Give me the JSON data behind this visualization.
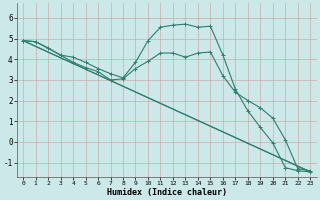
{
  "xlabel": "Humidex (Indice chaleur)",
  "background_color": "#cce8e8",
  "grid_color": "#b0c8c8",
  "line_color": "#2e7d6e",
  "xlim": [
    -0.5,
    23.5
  ],
  "ylim": [
    -1.7,
    6.7
  ],
  "xticks": [
    0,
    1,
    2,
    3,
    4,
    5,
    6,
    7,
    8,
    9,
    10,
    11,
    12,
    13,
    14,
    15,
    16,
    17,
    18,
    19,
    20,
    21,
    22,
    23
  ],
  "yticks": [
    -1,
    0,
    1,
    2,
    3,
    4,
    5,
    6
  ],
  "series": [
    {
      "x": [
        0,
        1,
        2,
        3,
        4,
        5,
        6,
        7,
        8,
        9,
        10,
        11,
        12,
        13,
        14,
        15,
        16,
        17,
        18,
        19,
        20,
        21,
        22,
        23
      ],
      "y": [
        4.9,
        4.85,
        4.55,
        4.2,
        4.1,
        3.85,
        3.55,
        3.3,
        3.1,
        3.85,
        4.9,
        5.55,
        5.65,
        5.7,
        5.55,
        5.6,
        4.2,
        2.55,
        1.5,
        0.7,
        -0.05,
        -1.25,
        -1.4,
        -1.45
      ],
      "marker": true
    },
    {
      "x": [
        0,
        1,
        3,
        4,
        5,
        6,
        7,
        8,
        9,
        10,
        11,
        12,
        13,
        14,
        15,
        16,
        17,
        18,
        19,
        20,
        21,
        22,
        23
      ],
      "y": [
        4.9,
        4.85,
        4.2,
        3.85,
        3.6,
        3.4,
        3.0,
        3.05,
        3.55,
        3.9,
        4.3,
        4.3,
        4.1,
        4.3,
        4.35,
        3.2,
        2.4,
        2.0,
        1.65,
        1.15,
        0.1,
        -1.3,
        -1.4
      ],
      "marker": true
    },
    {
      "x": [
        0,
        23
      ],
      "y": [
        4.9,
        -1.45
      ],
      "marker": false
    },
    {
      "x": [
        0,
        23
      ],
      "y": [
        4.9,
        -1.45
      ],
      "marker": false
    }
  ]
}
